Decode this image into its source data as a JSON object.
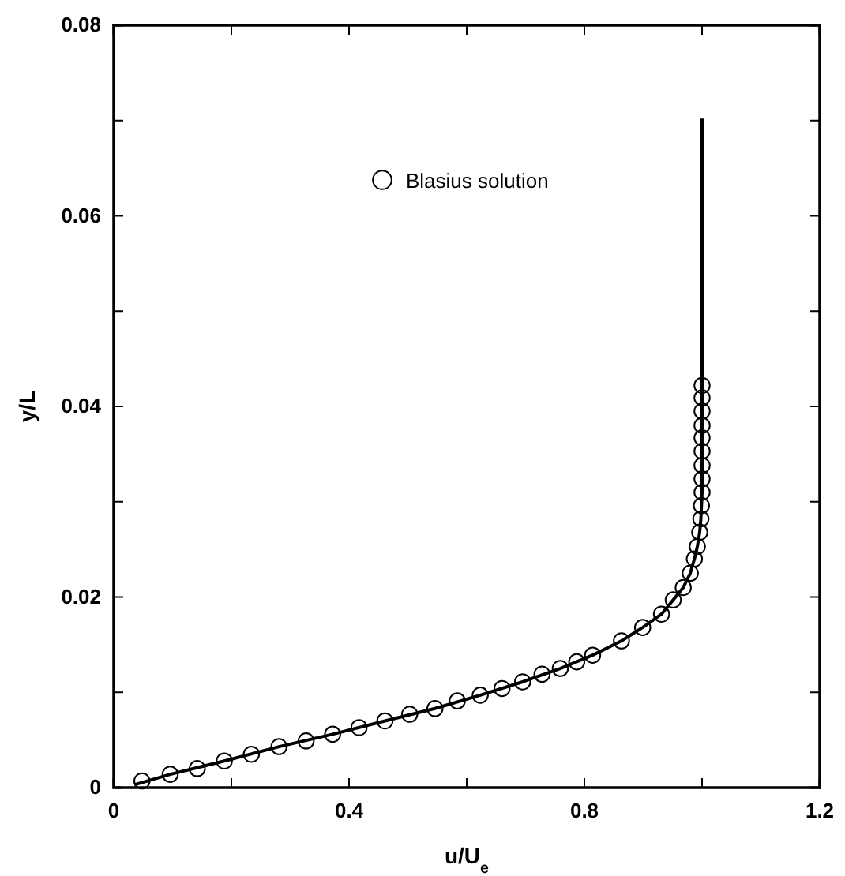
{
  "chart_data": {
    "type": "line",
    "xlabel": "u/U$_{e}$",
    "ylabel": "y/L",
    "xlim": [
      0,
      1.2
    ],
    "ylim": [
      0,
      0.08
    ],
    "xticks": [
      0,
      {
        "value": 0.2,
        "label": null
      },
      0.4,
      {
        "value": 0.6,
        "label": null
      },
      0.8,
      {
        "value": 1.0,
        "label": null
      },
      1.2
    ],
    "yticks": [
      0,
      {
        "value": 0.01,
        "label": null
      },
      0.02,
      {
        "value": 0.03,
        "label": null
      },
      0.04,
      {
        "value": 0.05,
        "label": null
      },
      0.06,
      {
        "value": 0.07,
        "label": null
      },
      0.08
    ],
    "grid": false,
    "legend": "top left",
    "series": [
      {
        "name": "Blasius solution",
        "type": "scatter",
        "marker": "circle",
        "color": "#000000",
        "x": [
          0.048,
          0.096,
          0.142,
          0.188,
          0.234,
          0.281,
          0.327,
          0.372,
          0.417,
          0.461,
          0.503,
          0.546,
          0.584,
          0.623,
          0.66,
          0.695,
          0.728,
          0.759,
          0.787,
          0.814,
          0.863,
          0.899,
          0.931,
          0.951,
          0.968,
          0.98,
          0.987,
          0.992,
          0.996,
          0.998,
          0.999,
          1.0,
          1.0,
          1.0,
          1.0,
          1.0,
          1.0,
          1.0,
          1.0,
          1.0
        ],
        "values": [
          0.0007,
          0.0014,
          0.002,
          0.0028,
          0.0035,
          0.0043,
          0.0049,
          0.0056,
          0.0063,
          0.007,
          0.0077,
          0.0083,
          0.0091,
          0.0097,
          0.0104,
          0.0111,
          0.0119,
          0.0125,
          0.0132,
          0.0139,
          0.0154,
          0.0168,
          0.0182,
          0.0197,
          0.021,
          0.0225,
          0.024,
          0.0253,
          0.0268,
          0.0282,
          0.0296,
          0.031,
          0.0324,
          0.0338,
          0.0353,
          0.0367,
          0.038,
          0.0395,
          0.0409,
          0.0422
        ]
      },
      {
        "marker": "none",
        "line_style": "solid",
        "color": "#000000",
        "x": [
          0.035,
          0.096,
          0.188,
          0.281,
          0.372,
          0.461,
          0.546,
          0.623,
          0.695,
          0.759,
          0.814,
          0.863,
          0.899,
          0.931,
          0.951,
          0.968,
          0.98,
          0.987,
          0.992,
          0.996,
          0.998,
          1.0,
          1.0,
          1.0
        ],
        "values": [
          0.0003,
          0.0014,
          0.0028,
          0.0043,
          0.0056,
          0.007,
          0.0083,
          0.0097,
          0.0111,
          0.0125,
          0.0139,
          0.0154,
          0.0168,
          0.0182,
          0.0197,
          0.021,
          0.0225,
          0.024,
          0.0253,
          0.0268,
          0.0282,
          0.031,
          0.045,
          0.0702
        ]
      }
    ]
  }
}
